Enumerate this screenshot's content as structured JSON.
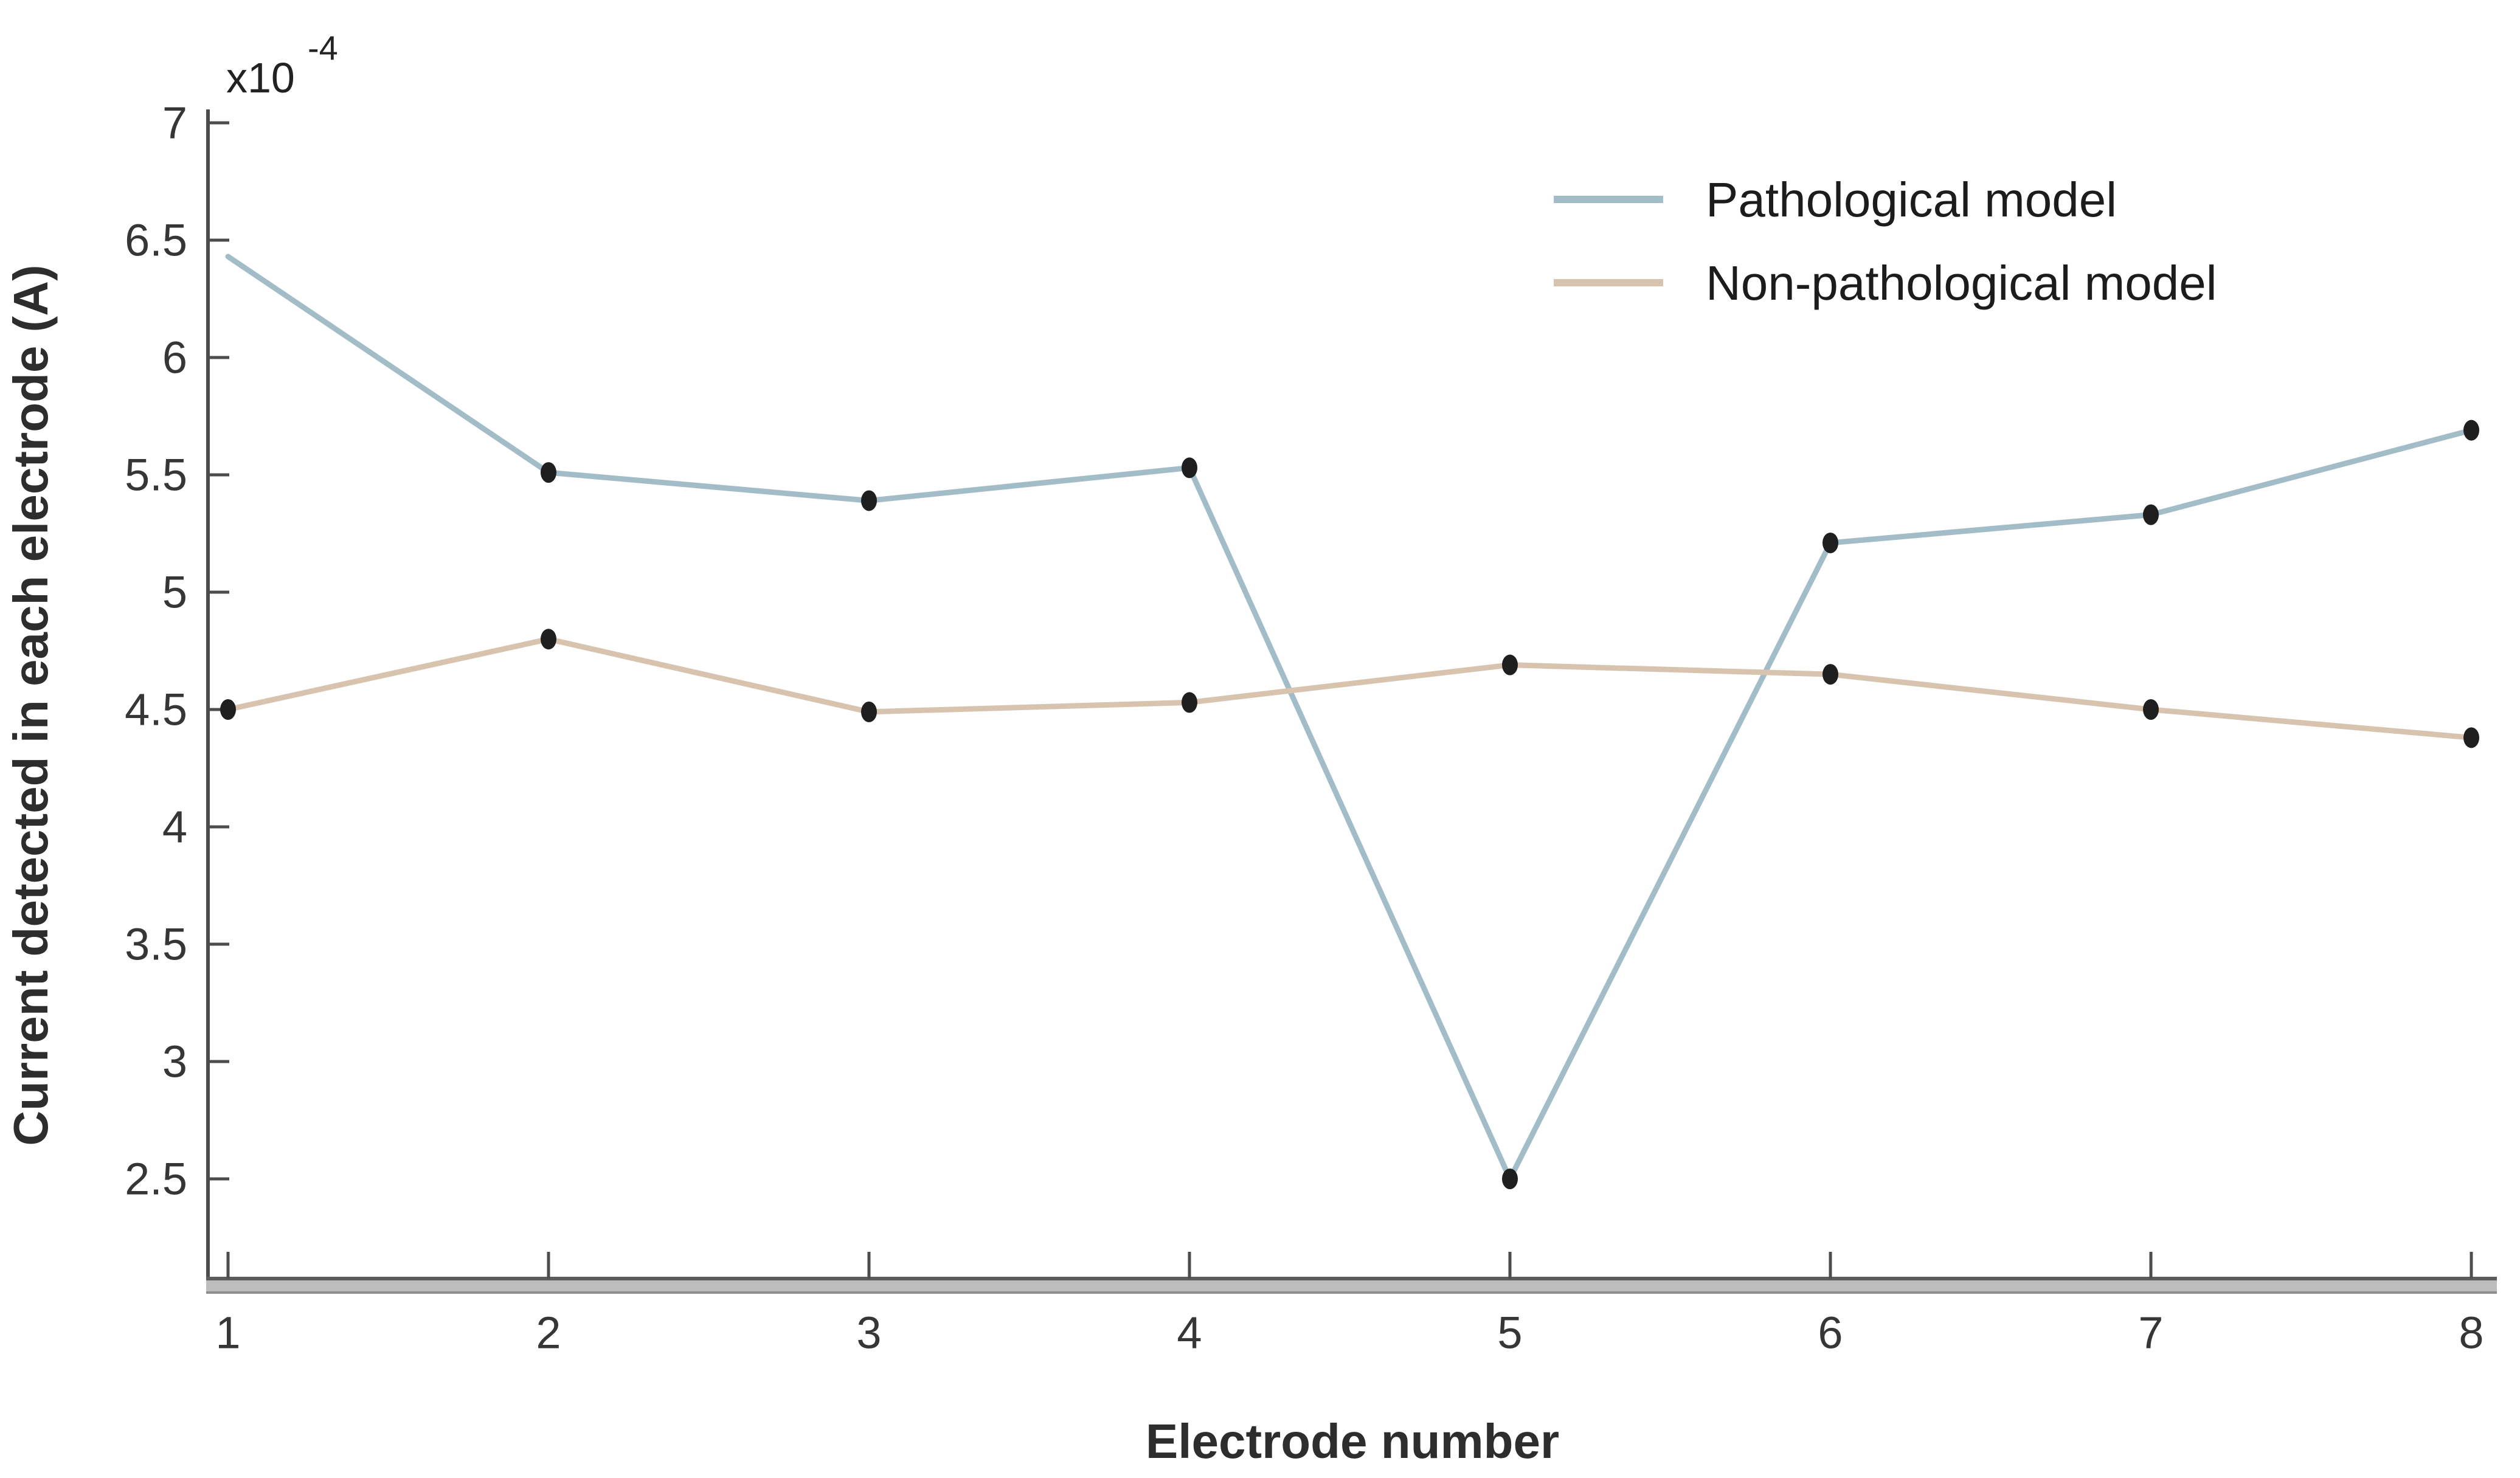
{
  "axes": {
    "y_exponent_base": "x10",
    "y_exponent_power": "-4"
  },
  "colors": {
    "background": "#ffffff",
    "axis_line": "#4d4d4d",
    "x_axis_bar": "#bdbdbd",
    "x_axis_edge": "#5c5c5c",
    "tick_text": "#363636",
    "label_text": "#2d2d2d",
    "marker": "#1f1f1f",
    "pathological_line": "#a3bdc8",
    "non_pathological_line": "#d8c3ae"
  },
  "chart_data": {
    "type": "line",
    "title": "",
    "xlabel": "Electrode number",
    "ylabel": "Current detected in each electrode (A)",
    "y_scale_label": "x10^-4",
    "values_unit": "A, multiplied by 1e-4",
    "categories": [
      1,
      2,
      3,
      4,
      5,
      6,
      7,
      8
    ],
    "yticks": [
      2.5,
      3,
      3.5,
      4,
      4.5,
      5,
      5.5,
      6,
      6.5,
      7
    ],
    "ylim": [
      2.0,
      7.16
    ],
    "xlim": [
      0.94,
      8.08
    ],
    "grid": false,
    "legend_position": "upper-right-inside",
    "marker_color": "#1f1f1f",
    "series": [
      {
        "name": "Pathological model",
        "color": "#a3bdc8",
        "values": [
          6.43,
          5.51,
          5.39,
          5.53,
          2.5,
          5.21,
          5.33,
          5.69
        ],
        "first_point_marker": false
      },
      {
        "name": "Non-pathological model",
        "color": "#d8c3ae",
        "values": [
          4.5,
          4.8,
          4.49,
          4.53,
          4.69,
          4.65,
          4.5,
          4.38
        ],
        "first_point_marker": true
      }
    ]
  }
}
